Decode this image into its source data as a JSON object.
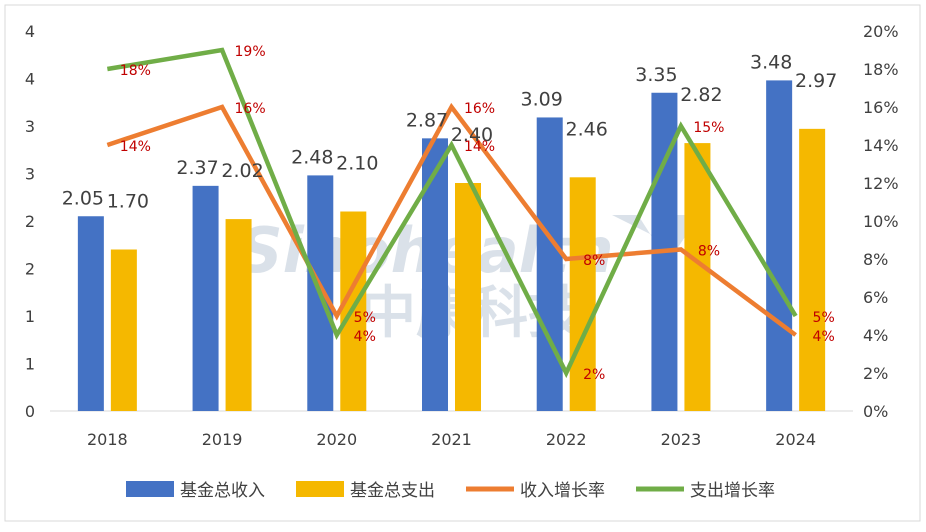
{
  "watermark": {
    "line1": "Sinohealth",
    "line2": "中康科技"
  },
  "chart_data": {
    "type": "bar",
    "categories": [
      "2018",
      "2019",
      "2020",
      "2021",
      "2022",
      "2023",
      "2024"
    ],
    "series": [
      {
        "name": "基金总收入",
        "kind": "bar",
        "axis": "left",
        "color": "#4472C4",
        "values": [
          2.05,
          2.37,
          2.48,
          2.87,
          3.09,
          3.35,
          3.48
        ],
        "labels": [
          "2.05",
          "2.37",
          "2.48",
          "2.87",
          "3.09",
          "3.35",
          "3.48"
        ]
      },
      {
        "name": "基金总支出",
        "kind": "bar",
        "axis": "left",
        "color": "#F5B800",
        "values": [
          1.7,
          2.02,
          2.1,
          2.4,
          2.46,
          2.82,
          2.97
        ],
        "labels": [
          "1.70",
          "2.02",
          "2.10",
          "2.40",
          "2.46",
          "2.82",
          "2.97"
        ]
      },
      {
        "name": "收入增长率",
        "kind": "line",
        "axis": "right",
        "color": "#ED7D31",
        "values": [
          0.14,
          0.16,
          0.05,
          0.16,
          0.08,
          0.085,
          0.04
        ],
        "labels": [
          "14%",
          "16%",
          "5%",
          "16%",
          "8%",
          "8%",
          "4%"
        ]
      },
      {
        "name": "支出增长率",
        "kind": "line",
        "axis": "right",
        "color": "#70AD47",
        "values": [
          0.18,
          0.19,
          0.04,
          0.14,
          0.02,
          0.15,
          0.05
        ],
        "labels": [
          "18%",
          "19%",
          "4%",
          "14%",
          "2%",
          "15%",
          "5%"
        ]
      }
    ],
    "y_left": {
      "ticks": [
        "0",
        "1",
        "1",
        "2",
        "2",
        "3",
        "3",
        "4",
        "4"
      ],
      "ylim": [
        0,
        4
      ]
    },
    "y_right": {
      "ticks": [
        "0%",
        "2%",
        "4%",
        "6%",
        "8%",
        "10%",
        "12%",
        "14%",
        "16%",
        "18%",
        "20%"
      ],
      "ylim": [
        0,
        0.2
      ]
    },
    "legend_position": "bottom",
    "grid": false,
    "label_color": "#C00000"
  }
}
